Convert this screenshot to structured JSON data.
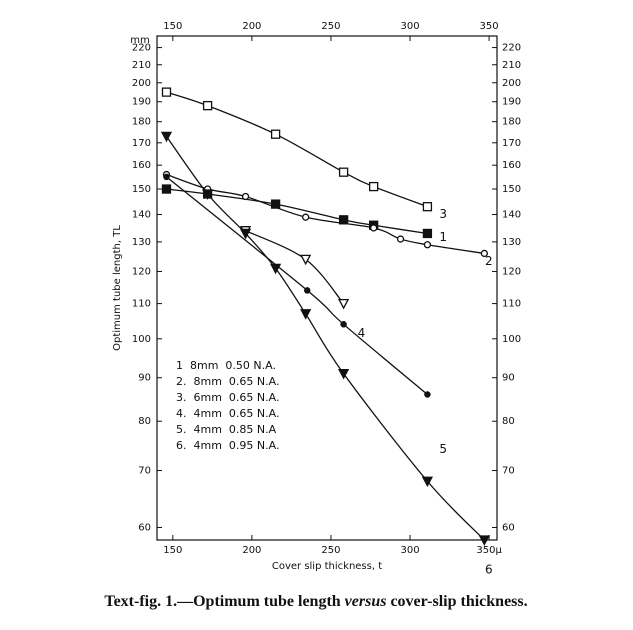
{
  "chart_data": {
    "type": "line",
    "caption": {
      "before": "Text-fig. 1.—Optimum tube length ",
      "italic": "versus",
      "after": " cover-slip thickness."
    },
    "xlabel": "Cover slip thickness, t",
    "ylabel": "Optimum tube length, TL",
    "y_unit": "mm",
    "xlim": [
      140,
      355
    ],
    "ylim": [
      58,
      227
    ],
    "log_y": true,
    "xticks": [
      150,
      200,
      250,
      300,
      {
        "value": 350,
        "label": "350μ"
      }
    ],
    "top_xticks": [
      150,
      200,
      250,
      300,
      350
    ],
    "yticks": [
      60,
      70,
      80,
      90,
      100,
      110,
      120,
      130,
      140,
      150,
      160,
      170,
      180,
      190,
      200,
      210,
      220
    ],
    "series": [
      {
        "name": "1  8mm  0.50 N.A.",
        "label": "1",
        "marker": "filled-square",
        "color": "#111",
        "x": [
          146,
          172,
          215,
          258,
          277,
          311
        ],
        "values": [
          150,
          148,
          144,
          138,
          136,
          133
        ]
      },
      {
        "name": "2.  8mm  0.65 N.A.",
        "label": "2",
        "marker": "open-circle",
        "color": "#111",
        "x": [
          146,
          172,
          196,
          234,
          277,
          294,
          311,
          347
        ],
        "values": [
          156,
          150,
          147,
          139,
          135,
          131,
          129,
          126
        ]
      },
      {
        "name": "3.  6mm  0.65 N.A.",
        "label": "3",
        "marker": "open-square",
        "color": "#111",
        "x": [
          146,
          172,
          215,
          258,
          277,
          311
        ],
        "values": [
          195,
          188,
          174,
          157,
          151,
          143
        ]
      },
      {
        "name": "4.  4mm  0.65 N.A.",
        "label": "4",
        "marker": "open-triangle",
        "color": "#111",
        "x": [
          196,
          234,
          258
        ],
        "values": [
          134,
          124,
          110
        ]
      },
      {
        "name": "5.  4mm  0.85 N.A",
        "label": "5",
        "marker": "filled-circle",
        "color": "#111",
        "x": [
          146,
          235,
          258,
          311
        ],
        "values": [
          155,
          114,
          104,
          86
        ]
      },
      {
        "name": "6.  4mm  0.95 N.A.",
        "label": "6",
        "marker": "filled-triangle",
        "color": "#111",
        "x": [
          146,
          172,
          196,
          215,
          234,
          258,
          311,
          347
        ],
        "values": [
          173,
          148,
          133,
          121,
          107,
          91,
          68,
          58
        ]
      }
    ]
  }
}
